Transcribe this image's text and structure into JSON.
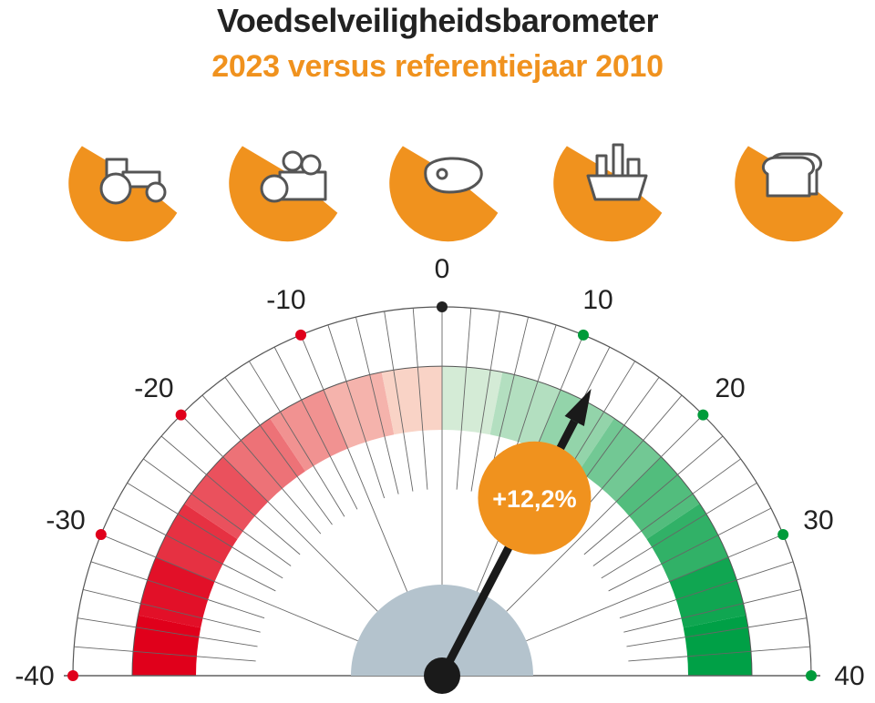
{
  "header": {
    "title": "Voedselveiligheidsbarometer",
    "subtitle": "2023 versus referentiejaar 2010"
  },
  "categories": [
    {
      "icon": "tractor-icon"
    },
    {
      "icon": "fruit-vegetable-crate-icon"
    },
    {
      "icon": "meat-steak-icon"
    },
    {
      "icon": "grocery-basket-icon"
    },
    {
      "icon": "bread-slices-icon"
    }
  ],
  "chart_data": {
    "type": "gauge",
    "title": "Voedselveiligheidsbarometer",
    "subtitle": "2023 versus referentiejaar 2010",
    "min": -40,
    "max": 40,
    "ticks": [
      -40,
      -30,
      -20,
      -10,
      0,
      10,
      20,
      30,
      40
    ],
    "tick_labels": [
      "-40",
      "-30",
      "-20",
      "-10",
      "0",
      "10",
      "20",
      "30",
      "40"
    ],
    "value": 12.2,
    "value_label": "+12,2%",
    "scale": {
      "negative_color": "#e0001b",
      "neutral_color": "#222222",
      "positive_color": "#009b3a"
    }
  },
  "colors": {
    "accent_orange": "#f0921e",
    "hub_grey": "#b4c3cd",
    "red_full": "#e0001b",
    "red_light": "#f9d3c6",
    "green_full": "#00a046",
    "green_light": "#d4ebd6"
  }
}
